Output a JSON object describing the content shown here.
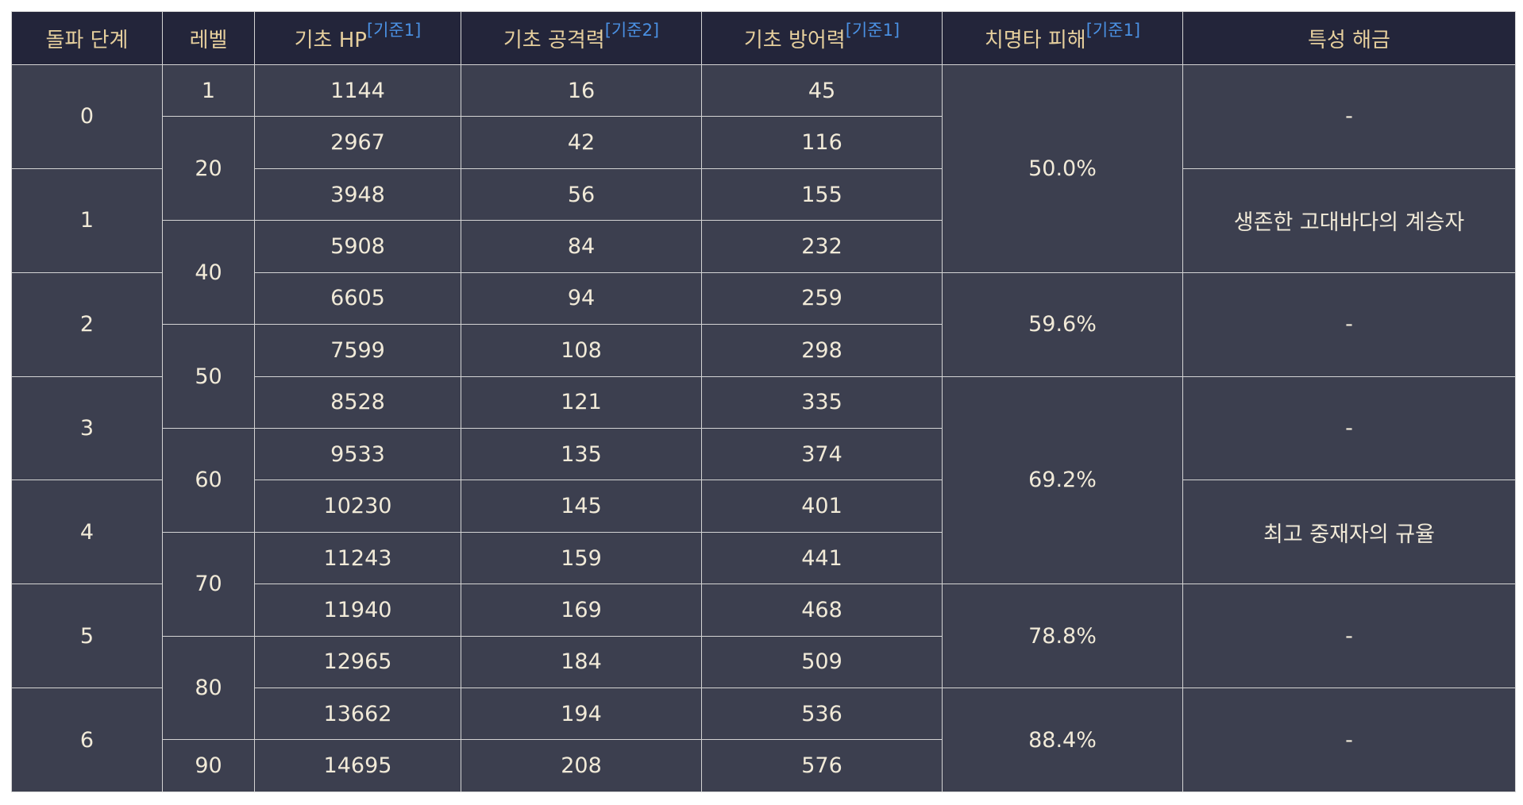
{
  "headers": {
    "stage": "돌파 단계",
    "level": "레벨",
    "hp": "기초 HP",
    "hp_ref": "[기준1]",
    "atk": "기초 공격력",
    "atk_ref": "[기준2]",
    "def": "기초 방어력",
    "def_ref": "[기준1]",
    "crit": "치명타 피해",
    "crit_ref": "[기준1]",
    "trait": "특성 해금"
  },
  "stages": [
    "0",
    "1",
    "2",
    "3",
    "4",
    "5",
    "6"
  ],
  "levels": [
    "1",
    "20",
    "40",
    "50",
    "60",
    "70",
    "80",
    "90"
  ],
  "rows": [
    {
      "hp": "1144",
      "atk": "16",
      "def": "45"
    },
    {
      "hp": "2967",
      "atk": "42",
      "def": "116"
    },
    {
      "hp": "3948",
      "atk": "56",
      "def": "155"
    },
    {
      "hp": "5908",
      "atk": "84",
      "def": "232"
    },
    {
      "hp": "6605",
      "atk": "94",
      "def": "259"
    },
    {
      "hp": "7599",
      "atk": "108",
      "def": "298"
    },
    {
      "hp": "8528",
      "atk": "121",
      "def": "335"
    },
    {
      "hp": "9533",
      "atk": "135",
      "def": "374"
    },
    {
      "hp": "10230",
      "atk": "145",
      "def": "401"
    },
    {
      "hp": "11243",
      "atk": "159",
      "def": "441"
    },
    {
      "hp": "11940",
      "atk": "169",
      "def": "468"
    },
    {
      "hp": "12965",
      "atk": "184",
      "def": "509"
    },
    {
      "hp": "13662",
      "atk": "194",
      "def": "536"
    },
    {
      "hp": "14695",
      "atk": "208",
      "def": "576"
    }
  ],
  "crit": [
    "50.0%",
    "59.6%",
    "69.2%",
    "78.8%",
    "88.4%"
  ],
  "traits": [
    "-",
    "생존한 고대바다의 계승자",
    "-",
    "-",
    "최고 중재자의 규율",
    "-",
    "-"
  ]
}
